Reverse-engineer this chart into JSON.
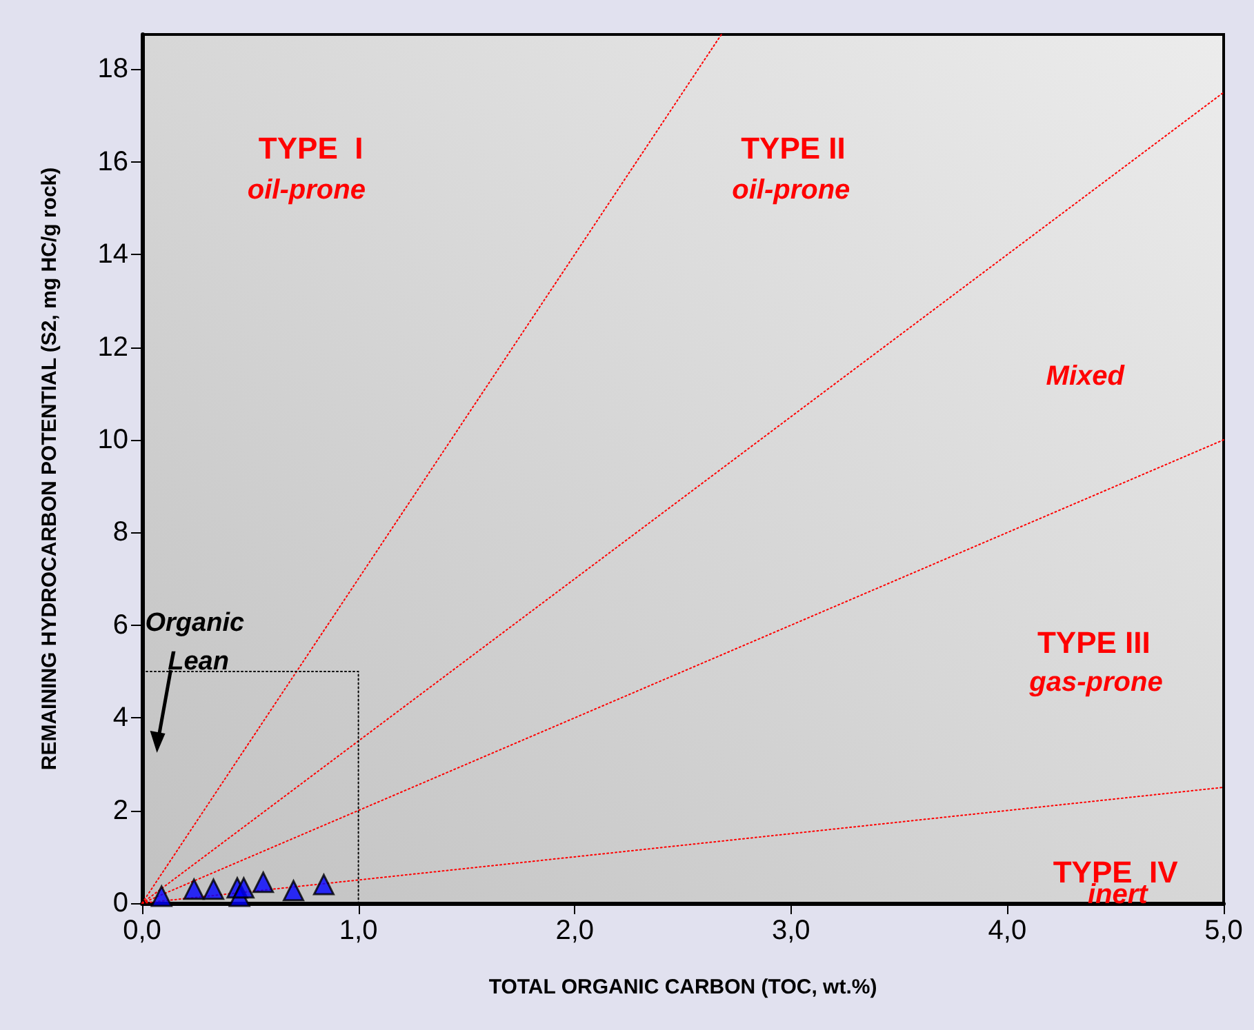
{
  "chart_data": {
    "type": "scatter",
    "xlabel": "TOTAL ORGANIC CARBON (TOC, wt.%)",
    "ylabel": "REMAINING HYDROCARBON POTENTIAL (S2, mg HC/g rock)",
    "xlim": [
      0,
      5
    ],
    "ylim": [
      0,
      18.75
    ],
    "xticks": [
      {
        "value": 0,
        "label": "0,0"
      },
      {
        "value": 1,
        "label": "1,0"
      },
      {
        "value": 2,
        "label": "2,0"
      },
      {
        "value": 3,
        "label": "3,0"
      },
      {
        "value": 4,
        "label": "4,0"
      },
      {
        "value": 5,
        "label": "5,0"
      }
    ],
    "yticks": [
      0,
      2,
      4,
      6,
      8,
      10,
      12,
      14,
      16,
      18
    ],
    "grid": false,
    "series": [
      {
        "type": "line",
        "color": "#ff0000",
        "line_style": "dotted",
        "marker": "none",
        "x": [
          0,
          2.678
        ],
        "values": [
          0,
          18.75
        ]
      },
      {
        "type": "line",
        "color": "#ff0000",
        "line_style": "dotted",
        "marker": "none",
        "x": [
          0,
          5
        ],
        "values": [
          0,
          17.5
        ]
      },
      {
        "type": "line",
        "color": "#ff0000",
        "line_style": "dotted",
        "marker": "none",
        "x": [
          0,
          5
        ],
        "values": [
          0,
          10
        ]
      },
      {
        "type": "line",
        "color": "#ff0000",
        "line_style": "dotted",
        "marker": "none",
        "x": [
          0,
          5
        ],
        "values": [
          0,
          2.5
        ]
      },
      {
        "type": "line",
        "color": "#000000",
        "line_style": "dotted",
        "marker": "none",
        "x": [
          0,
          1,
          1
        ],
        "values": [
          5,
          5,
          0
        ]
      },
      {
        "type": "scatter",
        "color": "#0000ff",
        "marker": "triangle",
        "x": [
          0.09,
          0.24,
          0.33,
          0.44,
          0.45,
          0.47,
          0.56,
          0.7,
          0.84
        ],
        "values": [
          0.15,
          0.3,
          0.3,
          0.33,
          0.15,
          0.33,
          0.45,
          0.27,
          0.4
        ]
      }
    ],
    "annotations": [
      "TYPE  I",
      "oil-prone",
      "TYPE II",
      "oil-prone",
      "Mixed",
      "TYPE III",
      "gas-prone",
      "TYPE  IV",
      "inert",
      "Organic Lean"
    ]
  }
}
